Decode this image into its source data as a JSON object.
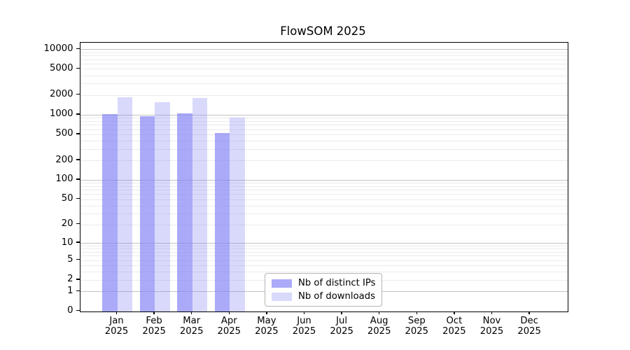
{
  "title": "FlowSOM 2025",
  "legend": {
    "items": [
      {
        "label": "Nb of distinct IPs"
      },
      {
        "label": "Nb of downloads"
      }
    ]
  },
  "colors": {
    "bar_base": "#8282f5",
    "distinct_ips_fill": "rgba(130,130,245,0.68)",
    "downloads_fill": "rgba(130,130,245,0.30)",
    "grid_major": "#c3c3c3",
    "grid_minor": "#ebebeb",
    "axis": "#000000",
    "background": "#ffffff"
  },
  "chart_data": {
    "type": "bar",
    "title": "FlowSOM 2025",
    "categories": [
      "Jan 2025",
      "Feb 2025",
      "Mar 2025",
      "Apr 2025",
      "May 2025",
      "Jun 2025",
      "Jul 2025",
      "Aug 2025",
      "Sep 2025",
      "Oct 2025",
      "Nov 2025",
      "Dec 2025"
    ],
    "series": [
      {
        "name": "Nb of distinct IPs",
        "color": "rgba(130,130,245,0.68)",
        "values": [
          1015,
          945,
          1040,
          530,
          null,
          null,
          null,
          null,
          null,
          null,
          null,
          null
        ]
      },
      {
        "name": "Nb of downloads",
        "color": "rgba(130,130,245,0.30)",
        "values": [
          1830,
          1570,
          1790,
          900,
          null,
          null,
          null,
          null,
          null,
          null,
          null,
          null
        ]
      }
    ],
    "xlabel": "",
    "ylabel": "",
    "y_scale": "log10(value+1)",
    "y_ticks": [
      10000,
      5000,
      2000,
      1000,
      500,
      200,
      100,
      50,
      20,
      10,
      5,
      2,
      1,
      0
    ],
    "ylim": [
      0,
      12600
    ],
    "grid": "horizontal major+minor (log decades)",
    "legend_position": "inside, lower center-left"
  }
}
